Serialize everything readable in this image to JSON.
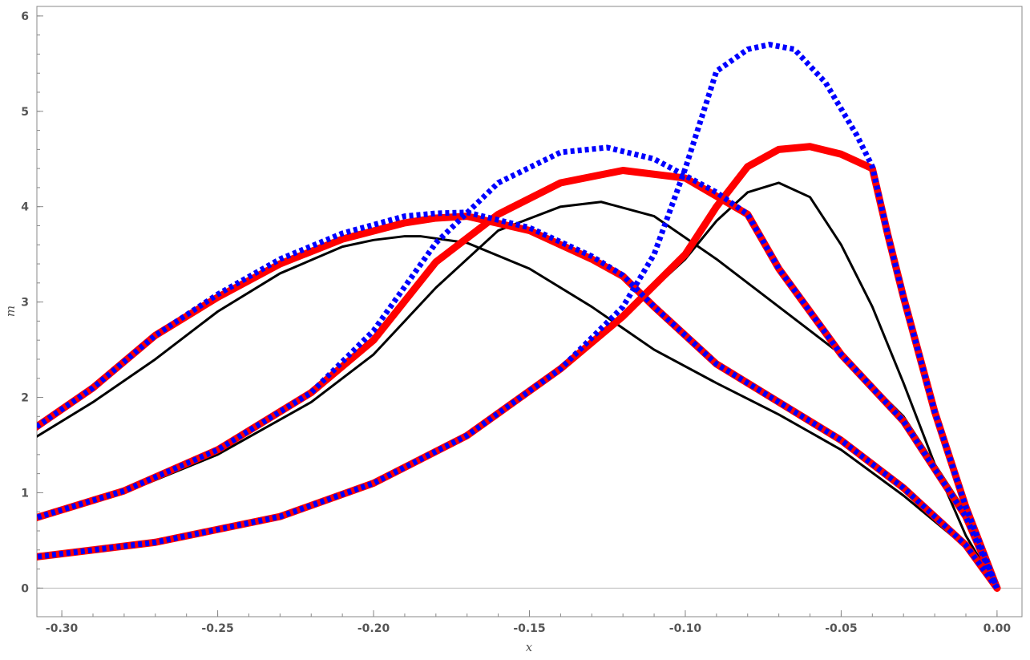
{
  "chart_data": {
    "type": "line",
    "title": "",
    "xlabel": "x",
    "ylabel": "m",
    "xlim": [
      -0.308,
      0.008
    ],
    "ylim": [
      -0.3,
      6.1
    ],
    "grid": false,
    "legend": "none",
    "x_ticks": [
      -0.3,
      -0.25,
      -0.2,
      -0.15,
      -0.1,
      -0.05,
      0.0
    ],
    "x_tick_labels": [
      "-0.30",
      "-0.25",
      "-0.20",
      "-0.15",
      "-0.10",
      "-0.05",
      "0.00"
    ],
    "y_ticks": [
      0,
      1,
      2,
      3,
      4,
      5,
      6
    ],
    "y_tick_labels": [
      "0",
      "1",
      "2",
      "3",
      "4",
      "5",
      "6"
    ],
    "series": [
      {
        "group": 1,
        "style": "black-thin",
        "color": "#000000",
        "x": [
          -0.31,
          -0.29,
          -0.27,
          -0.25,
          -0.23,
          -0.21,
          -0.2,
          -0.19,
          -0.185,
          -0.17,
          -0.15,
          -0.13,
          -0.11,
          -0.09,
          -0.07,
          -0.05,
          -0.03,
          -0.01,
          0
        ],
        "y": [
          1.55,
          1.95,
          2.4,
          2.9,
          3.3,
          3.58,
          3.65,
          3.69,
          3.69,
          3.62,
          3.35,
          2.95,
          2.5,
          2.15,
          1.82,
          1.45,
          0.97,
          0.43,
          0
        ]
      },
      {
        "group": 1,
        "style": "red-thick",
        "color": "#ff0000",
        "x": [
          -0.31,
          -0.29,
          -0.27,
          -0.25,
          -0.23,
          -0.21,
          -0.19,
          -0.18,
          -0.17,
          -0.15,
          -0.13,
          -0.12,
          -0.11,
          -0.09,
          -0.07,
          -0.05,
          -0.03,
          -0.01,
          0
        ],
        "y": [
          1.65,
          2.1,
          2.65,
          3.05,
          3.4,
          3.66,
          3.83,
          3.88,
          3.9,
          3.75,
          3.45,
          3.27,
          2.95,
          2.35,
          1.95,
          1.55,
          1.05,
          0.45,
          0
        ]
      },
      {
        "group": 1,
        "style": "blue-dotted",
        "color": "#0000ff",
        "x": [
          -0.31,
          -0.29,
          -0.27,
          -0.25,
          -0.23,
          -0.21,
          -0.19,
          -0.18,
          -0.17,
          -0.15,
          -0.13,
          -0.12,
          -0.11,
          -0.09,
          -0.07,
          -0.05,
          -0.03,
          -0.01,
          0
        ],
        "y": [
          1.65,
          2.1,
          2.65,
          3.08,
          3.45,
          3.72,
          3.9,
          3.93,
          3.94,
          3.78,
          3.48,
          3.28,
          2.95,
          2.35,
          1.95,
          1.55,
          1.05,
          0.45,
          0
        ]
      },
      {
        "group": 2,
        "style": "black-thin",
        "color": "#000000",
        "x": [
          -0.31,
          -0.28,
          -0.25,
          -0.22,
          -0.2,
          -0.18,
          -0.16,
          -0.14,
          -0.127,
          -0.11,
          -0.09,
          -0.07,
          -0.05,
          -0.03,
          -0.01,
          0
        ],
        "y": [
          0.72,
          1.0,
          1.4,
          1.95,
          2.45,
          3.15,
          3.75,
          4.0,
          4.05,
          3.9,
          3.45,
          2.95,
          2.45,
          1.8,
          0.8,
          0
        ]
      },
      {
        "group": 2,
        "style": "red-thick",
        "color": "#ff0000",
        "x": [
          -0.31,
          -0.28,
          -0.25,
          -0.22,
          -0.2,
          -0.18,
          -0.16,
          -0.14,
          -0.12,
          -0.1,
          -0.08,
          -0.07,
          -0.05,
          -0.03,
          -0.01,
          0
        ],
        "y": [
          0.72,
          1.02,
          1.45,
          2.05,
          2.6,
          3.42,
          3.92,
          4.25,
          4.38,
          4.3,
          3.92,
          3.35,
          2.45,
          1.75,
          0.75,
          0
        ]
      },
      {
        "group": 2,
        "style": "blue-dotted",
        "color": "#0000ff",
        "x": [
          -0.31,
          -0.28,
          -0.25,
          -0.22,
          -0.2,
          -0.18,
          -0.16,
          -0.14,
          -0.125,
          -0.11,
          -0.09,
          -0.08,
          -0.07,
          -0.05,
          -0.03,
          -0.01,
          0
        ],
        "y": [
          0.72,
          1.02,
          1.45,
          2.05,
          2.7,
          3.62,
          4.25,
          4.57,
          4.62,
          4.5,
          4.15,
          3.92,
          3.35,
          2.45,
          1.75,
          0.75,
          0
        ]
      },
      {
        "group": 3,
        "style": "black-thin",
        "color": "#000000",
        "x": [
          -0.31,
          -0.27,
          -0.23,
          -0.2,
          -0.17,
          -0.14,
          -0.12,
          -0.1,
          -0.09,
          -0.08,
          -0.07,
          -0.06,
          -0.05,
          -0.04,
          -0.03,
          -0.02,
          -0.01,
          0
        ],
        "y": [
          0.32,
          0.48,
          0.75,
          1.1,
          1.6,
          2.3,
          2.85,
          3.45,
          3.85,
          4.15,
          4.25,
          4.1,
          3.6,
          2.95,
          2.15,
          1.3,
          0.55,
          0
        ]
      },
      {
        "group": 3,
        "style": "red-thick",
        "color": "#ff0000",
        "x": [
          -0.31,
          -0.27,
          -0.23,
          -0.2,
          -0.17,
          -0.14,
          -0.12,
          -0.1,
          -0.09,
          -0.08,
          -0.07,
          -0.06,
          -0.05,
          -0.04,
          -0.035,
          -0.03,
          -0.02,
          -0.01,
          0
        ],
        "y": [
          0.32,
          0.48,
          0.75,
          1.1,
          1.6,
          2.3,
          2.85,
          3.5,
          4.0,
          4.42,
          4.6,
          4.63,
          4.55,
          4.4,
          3.7,
          3.05,
          1.85,
          0.85,
          0
        ]
      },
      {
        "group": 3,
        "style": "blue-dotted",
        "color": "#0000ff",
        "x": [
          -0.31,
          -0.27,
          -0.23,
          -0.2,
          -0.17,
          -0.14,
          -0.12,
          -0.11,
          -0.1,
          -0.09,
          -0.08,
          -0.073,
          -0.065,
          -0.055,
          -0.045,
          -0.04,
          -0.035,
          -0.03,
          -0.02,
          -0.01,
          0
        ],
        "y": [
          0.32,
          0.48,
          0.75,
          1.1,
          1.6,
          2.3,
          2.95,
          3.5,
          4.4,
          5.42,
          5.65,
          5.7,
          5.65,
          5.3,
          4.75,
          4.42,
          3.7,
          3.05,
          1.85,
          0.85,
          0
        ]
      }
    ]
  }
}
